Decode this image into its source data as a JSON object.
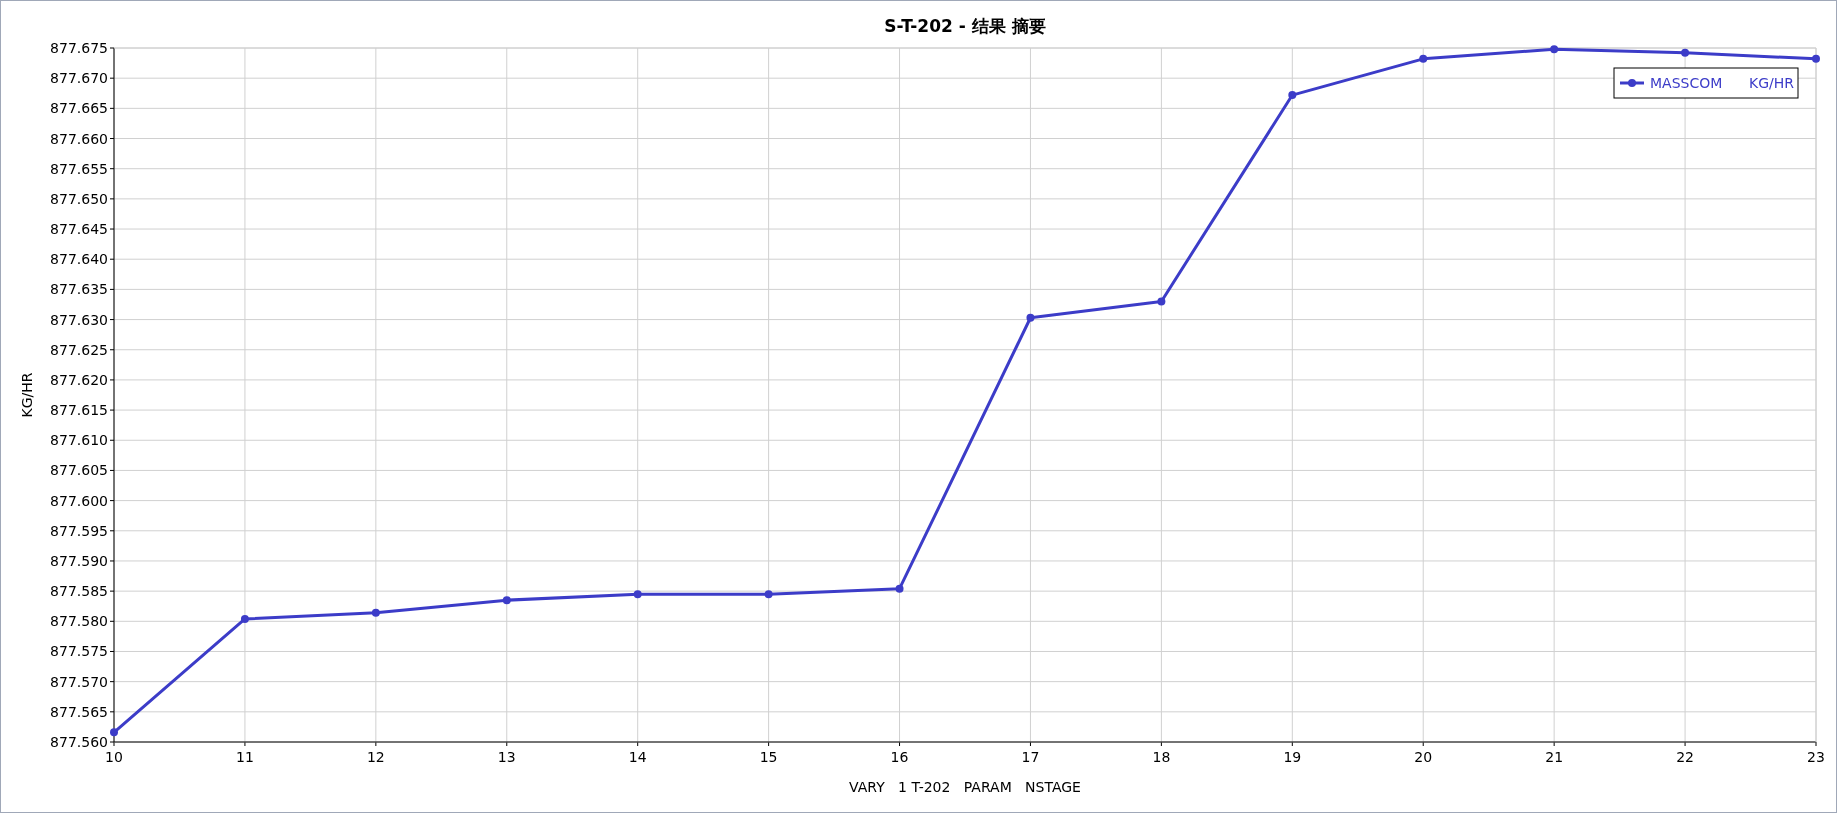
{
  "chart_data": {
    "type": "line",
    "title": "S-T-202 - 结果 摘要",
    "xlabel": "VARY   1 T-202   PARAM   NSTAGE",
    "ylabel": "KG/HR",
    "x": [
      10,
      11,
      12,
      13,
      14,
      15,
      16,
      17,
      18,
      19,
      20,
      21,
      22,
      23
    ],
    "series": [
      {
        "name": "MASSCOM      KG/HR",
        "color": "#3c3cc8",
        "values": [
          877.5616,
          877.5804,
          877.5814,
          877.5835,
          877.5845,
          877.5845,
          877.5854,
          877.6303,
          877.633,
          877.6672,
          877.6732,
          877.6748,
          877.6742,
          877.6732
        ]
      }
    ],
    "xlim": [
      10,
      23
    ],
    "xticks": [
      10,
      11,
      12,
      13,
      14,
      15,
      16,
      17,
      18,
      19,
      20,
      21,
      22,
      23
    ],
    "ylim": [
      877.56,
      877.675
    ],
    "yticks": [
      {
        "value": 877.56,
        "label": "877.560"
      },
      {
        "value": 877.565,
        "label": "877.565"
      },
      {
        "value": 877.57,
        "label": "877.570"
      },
      {
        "value": 877.575,
        "label": "877.575"
      },
      {
        "value": 877.58,
        "label": "877.580"
      },
      {
        "value": 877.585,
        "label": "877.585"
      },
      {
        "value": 877.59,
        "label": "877.590"
      },
      {
        "value": 877.595,
        "label": "877.595"
      },
      {
        "value": 877.6,
        "label": "877.600"
      },
      {
        "value": 877.605,
        "label": "877.605"
      },
      {
        "value": 877.61,
        "label": "877.610"
      },
      {
        "value": 877.615,
        "label": "877.615"
      },
      {
        "value": 877.62,
        "label": "877.620"
      },
      {
        "value": 877.625,
        "label": "877.625"
      },
      {
        "value": 877.63,
        "label": "877.630"
      },
      {
        "value": 877.635,
        "label": "877.635"
      },
      {
        "value": 877.64,
        "label": "877.640"
      },
      {
        "value": 877.645,
        "label": "877.645"
      },
      {
        "value": 877.65,
        "label": "877.650"
      },
      {
        "value": 877.655,
        "label": "877.655"
      },
      {
        "value": 877.66,
        "label": "877.660"
      },
      {
        "value": 877.665,
        "label": "877.665"
      },
      {
        "value": 877.67,
        "label": "877.670"
      },
      {
        "value": 877.675,
        "label": "877.675"
      }
    ],
    "grid": true,
    "legend": "top right",
    "marker": "circle",
    "line_style": "solid"
  }
}
